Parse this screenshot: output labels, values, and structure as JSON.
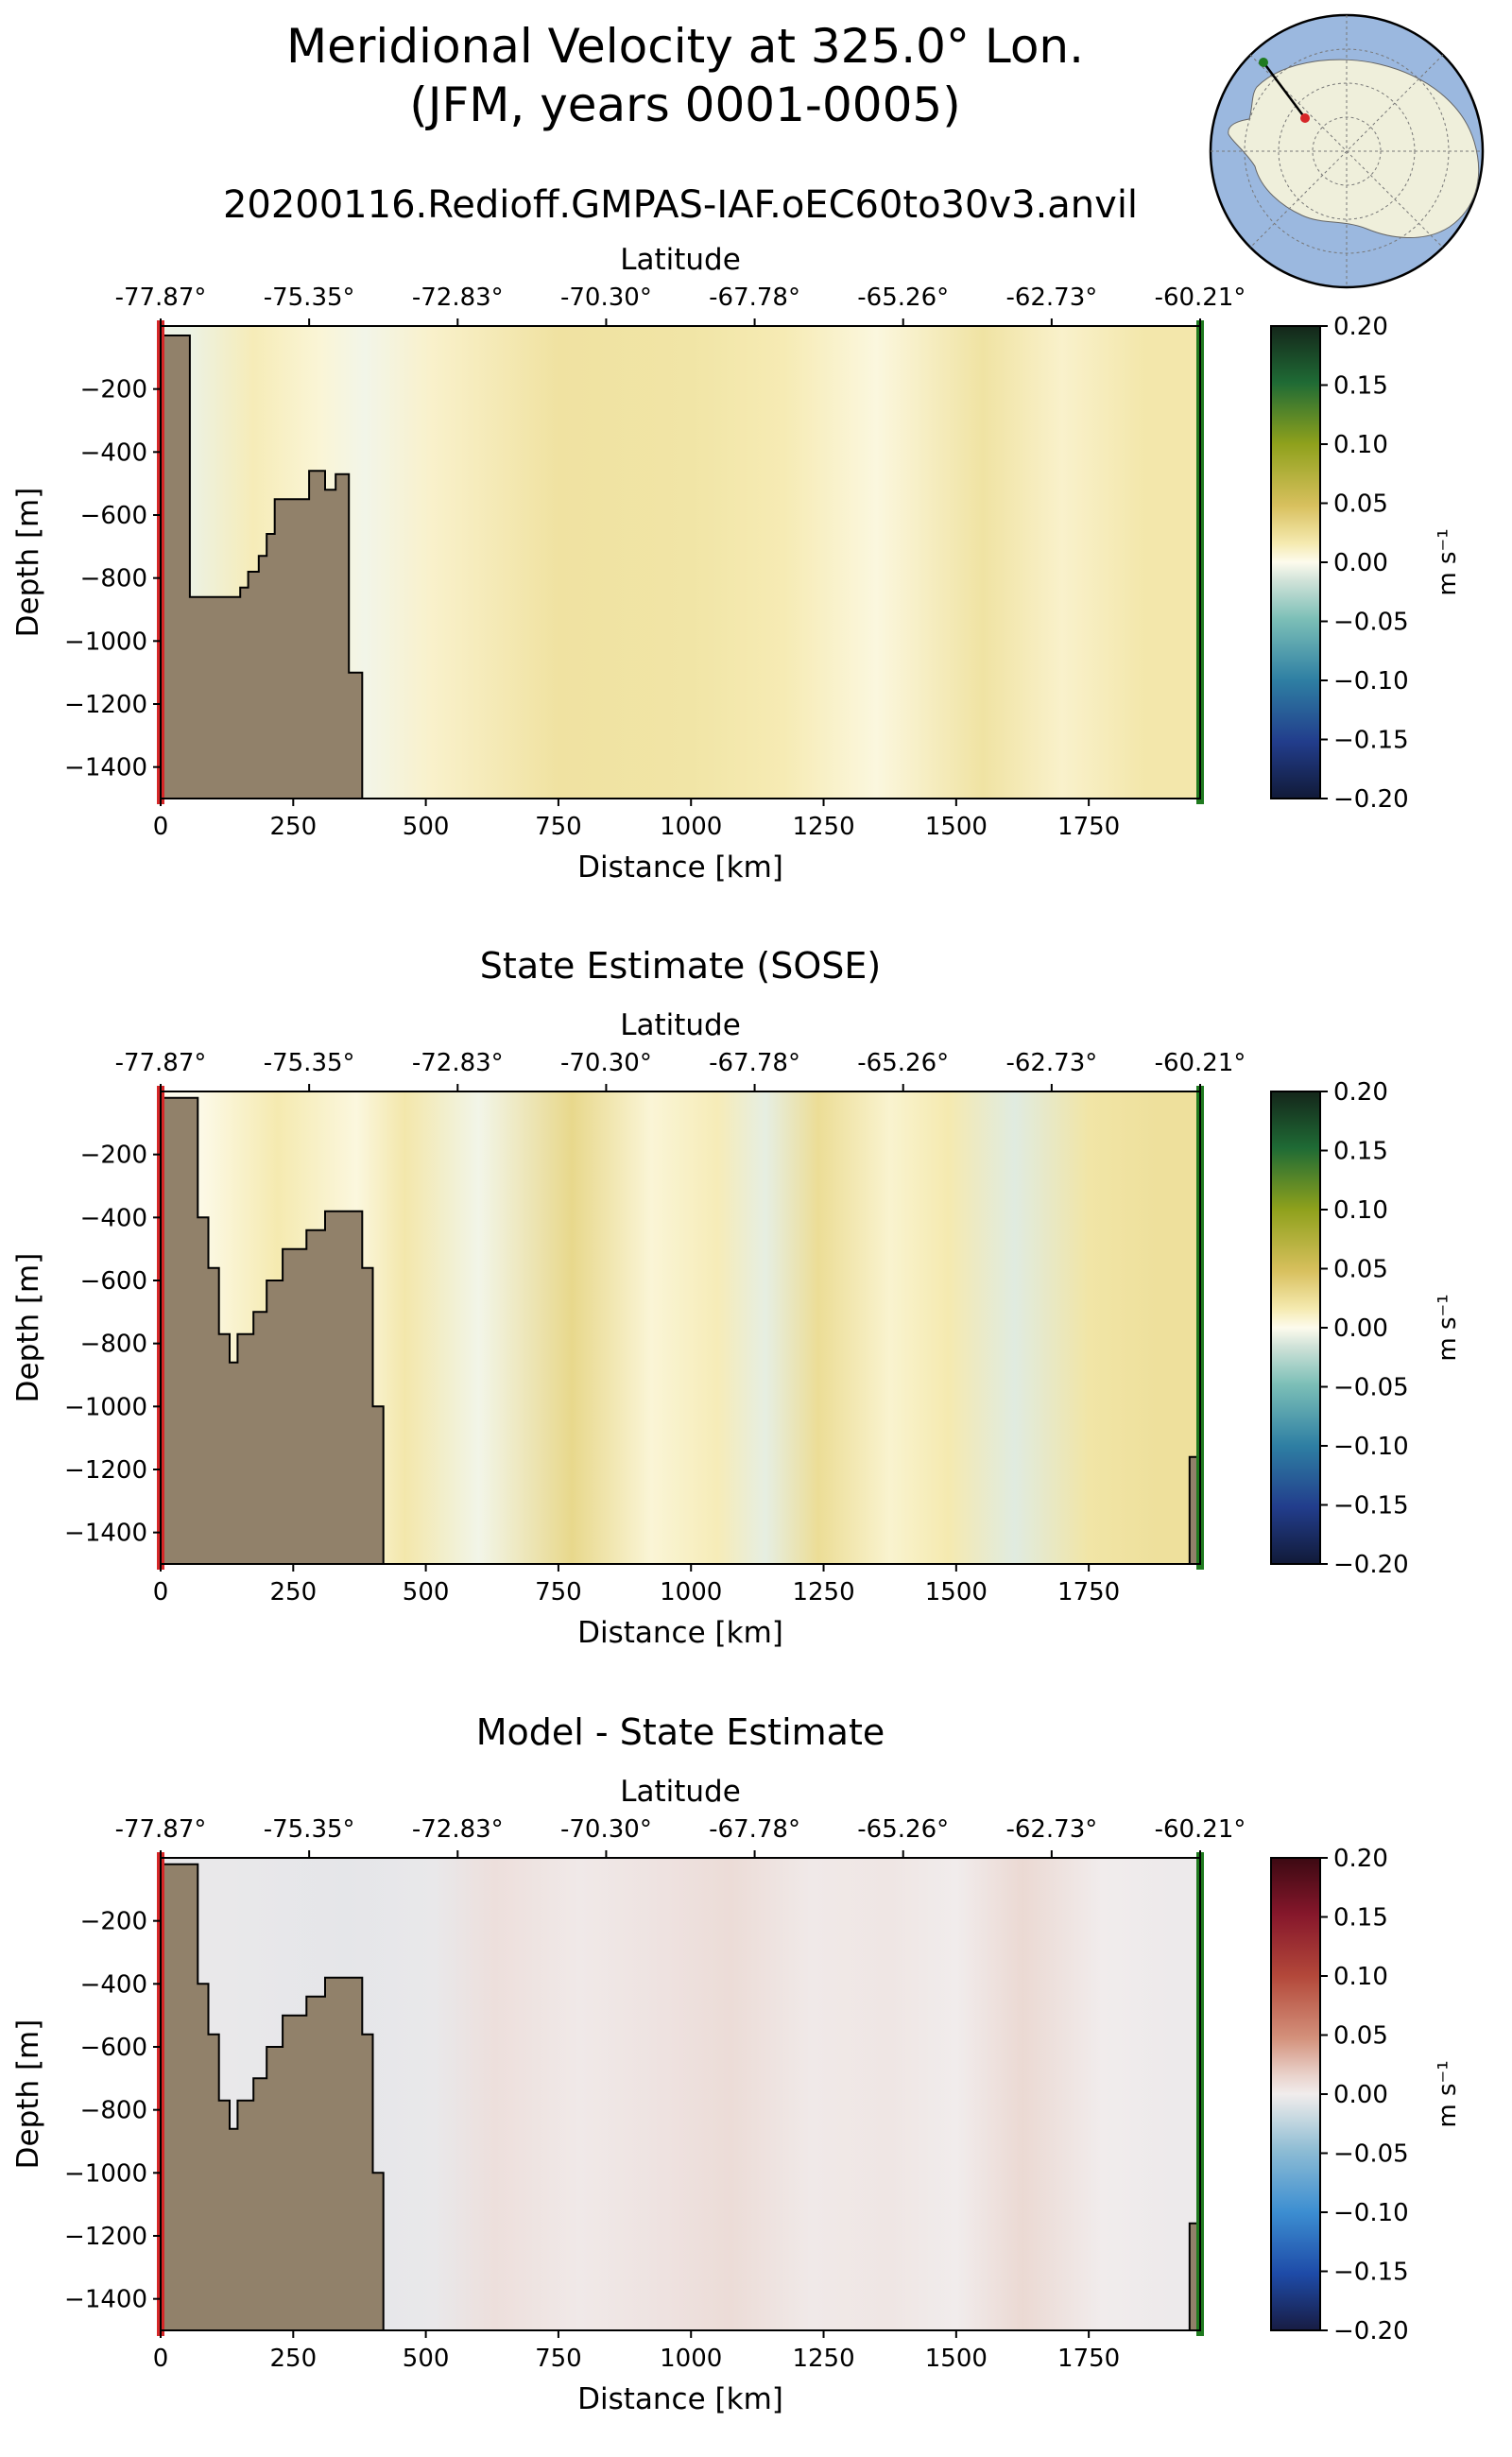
{
  "figure": {
    "title_line1": "Meridional Velocity at 325.0° Lon.",
    "title_line2": "(JFM, years 0001-0005)",
    "inset_map": {
      "type": "south-polar-stereographic",
      "land_color": "#efefdb",
      "ocean_color": "#9bb8df",
      "start_marker_color": "#d62728",
      "end_marker_color": "#1f7a1f"
    }
  },
  "chart_data": [
    {
      "type": "heatmap",
      "panel": "model",
      "title": "20200116.Redioff.GMPAS-IAF.oEC60to30v3.anvil",
      "xlabel": "Distance [km]",
      "ylabel": "Depth [m]",
      "top_xlabel": "Latitude",
      "xlim": [
        0,
        1960
      ],
      "ylim": [
        -1500,
        0
      ],
      "x_ticks": [
        0,
        250,
        500,
        750,
        1000,
        1250,
        1500,
        1750
      ],
      "x_tick_labels": [
        "0",
        "250",
        "500",
        "750",
        "1000",
        "1250",
        "1500",
        "1750"
      ],
      "y_ticks": [
        -200,
        -400,
        -600,
        -800,
        -1000,
        -1200,
        -1400
      ],
      "y_tick_labels": [
        "−200",
        "−400",
        "−600",
        "−800",
        "−1000",
        "−1200",
        "−1400"
      ],
      "top_ticks": [
        0,
        280,
        560,
        840,
        1120,
        1400,
        1680,
        1960
      ],
      "top_tick_labels": [
        "-77.87°",
        "-75.35°",
        "-72.83°",
        "-70.30°",
        "-67.78°",
        "-65.26°",
        "-62.73°",
        "-60.21°"
      ],
      "colorbar": {
        "label": "m s⁻¹",
        "range": [
          -0.2,
          0.2
        ],
        "colormap": "delta",
        "ticks": [
          0.2,
          0.15,
          0.1,
          0.05,
          0.0,
          -0.05,
          -0.1,
          -0.15,
          -0.2
        ],
        "tick_labels": [
          "0.20",
          "0.15",
          "0.10",
          "0.05",
          "0.00",
          "−0.05",
          "−0.10",
          "−0.15",
          "−0.20"
        ]
      },
      "field_columns": [
        {
          "x0": 0,
          "x1": 100,
          "value": -0.006
        },
        {
          "x0": 100,
          "x1": 250,
          "value": 0.014
        },
        {
          "x0": 250,
          "x1": 350,
          "value": 0.006
        },
        {
          "x0": 350,
          "x1": 420,
          "value": -0.004
        },
        {
          "x0": 420,
          "x1": 600,
          "value": 0.009
        },
        {
          "x0": 600,
          "x1": 900,
          "value": 0.022
        },
        {
          "x0": 900,
          "x1": 1100,
          "value": 0.02
        },
        {
          "x0": 1100,
          "x1": 1250,
          "value": 0.015
        },
        {
          "x0": 1250,
          "x1": 1450,
          "value": 0.004
        },
        {
          "x0": 1450,
          "x1": 1650,
          "value": 0.021
        },
        {
          "x0": 1650,
          "x1": 1750,
          "value": 0.009
        },
        {
          "x0": 1750,
          "x1": 1960,
          "value": 0.018
        }
      ],
      "bathymetry": [
        [
          0,
          -30
        ],
        [
          55,
          -30
        ],
        [
          55,
          -860
        ],
        [
          150,
          -860
        ],
        [
          150,
          -830
        ],
        [
          165,
          -830
        ],
        [
          165,
          -780
        ],
        [
          185,
          -780
        ],
        [
          185,
          -730
        ],
        [
          200,
          -730
        ],
        [
          200,
          -660
        ],
        [
          215,
          -660
        ],
        [
          215,
          -550
        ],
        [
          280,
          -550
        ],
        [
          280,
          -460
        ],
        [
          310,
          -460
        ],
        [
          310,
          -520
        ],
        [
          330,
          -520
        ],
        [
          330,
          -470
        ],
        [
          355,
          -470
        ],
        [
          355,
          -1100
        ],
        [
          380,
          -1100
        ],
        [
          380,
          -1500
        ],
        [
          0,
          -1500
        ]
      ],
      "bathymetry_end": [],
      "land_color": "#91816a",
      "start_line_color": "#d62728",
      "end_line_color": "#1f7a1f"
    },
    {
      "type": "heatmap",
      "panel": "reference",
      "title": "State Estimate (SOSE)",
      "xlabel": "Distance [km]",
      "ylabel": "Depth [m]",
      "top_xlabel": "Latitude",
      "xlim": [
        0,
        1960
      ],
      "ylim": [
        -1500,
        0
      ],
      "x_ticks": [
        0,
        250,
        500,
        750,
        1000,
        1250,
        1500,
        1750
      ],
      "x_tick_labels": [
        "0",
        "250",
        "500",
        "750",
        "1000",
        "1250",
        "1500",
        "1750"
      ],
      "y_ticks": [
        -200,
        -400,
        -600,
        -800,
        -1000,
        -1200,
        -1400
      ],
      "y_tick_labels": [
        "−200",
        "−400",
        "−600",
        "−800",
        "−1000",
        "−1200",
        "−1400"
      ],
      "top_ticks": [
        0,
        280,
        560,
        840,
        1120,
        1400,
        1680,
        1960
      ],
      "top_tick_labels": [
        "-77.87°",
        "-75.35°",
        "-72.83°",
        "-70.30°",
        "-67.78°",
        "-65.26°",
        "-62.73°",
        "-60.21°"
      ],
      "colorbar": {
        "label": "m s⁻¹",
        "range": [
          -0.2,
          0.2
        ],
        "colormap": "delta",
        "ticks": [
          0.2,
          0.15,
          0.1,
          0.05,
          0.0,
          -0.05,
          -0.1,
          -0.15,
          -0.2
        ],
        "tick_labels": [
          "0.20",
          "0.15",
          "0.10",
          "0.05",
          "0.00",
          "−0.05",
          "−0.10",
          "−0.15",
          "−0.20"
        ]
      },
      "field_columns": [
        {
          "x0": 0,
          "x1": 120,
          "value": 0.0
        },
        {
          "x0": 120,
          "x1": 320,
          "value": 0.016
        },
        {
          "x0": 320,
          "x1": 420,
          "value": 0.004
        },
        {
          "x0": 420,
          "x1": 500,
          "value": 0.018
        },
        {
          "x0": 500,
          "x1": 700,
          "value": -0.004
        },
        {
          "x0": 700,
          "x1": 850,
          "value": 0.03
        },
        {
          "x0": 850,
          "x1": 1000,
          "value": 0.006
        },
        {
          "x0": 1000,
          "x1": 1100,
          "value": 0.014
        },
        {
          "x0": 1100,
          "x1": 1180,
          "value": -0.008
        },
        {
          "x0": 1180,
          "x1": 1300,
          "value": 0.026
        },
        {
          "x0": 1300,
          "x1": 1450,
          "value": 0.008
        },
        {
          "x0": 1450,
          "x1": 1520,
          "value": 0.016
        },
        {
          "x0": 1520,
          "x1": 1700,
          "value": -0.01
        },
        {
          "x0": 1700,
          "x1": 1800,
          "value": 0.02
        },
        {
          "x0": 1800,
          "x1": 1960,
          "value": 0.024
        }
      ],
      "bathymetry": [
        [
          0,
          -20
        ],
        [
          70,
          -20
        ],
        [
          70,
          -400
        ],
        [
          90,
          -400
        ],
        [
          90,
          -560
        ],
        [
          110,
          -560
        ],
        [
          110,
          -770
        ],
        [
          130,
          -770
        ],
        [
          130,
          -860
        ],
        [
          145,
          -860
        ],
        [
          145,
          -770
        ],
        [
          175,
          -770
        ],
        [
          175,
          -700
        ],
        [
          200,
          -700
        ],
        [
          200,
          -600
        ],
        [
          230,
          -600
        ],
        [
          230,
          -500
        ],
        [
          275,
          -500
        ],
        [
          275,
          -440
        ],
        [
          310,
          -440
        ],
        [
          310,
          -380
        ],
        [
          380,
          -380
        ],
        [
          380,
          -560
        ],
        [
          400,
          -560
        ],
        [
          400,
          -1000
        ],
        [
          420,
          -1000
        ],
        [
          420,
          -1500
        ],
        [
          0,
          -1500
        ]
      ],
      "bathymetry_end": [
        [
          1960,
          -1160
        ],
        [
          1940,
          -1160
        ],
        [
          1940,
          -1500
        ],
        [
          1960,
          -1500
        ]
      ],
      "land_color": "#91816a",
      "start_line_color": "#d62728",
      "end_line_color": "#1f7a1f"
    },
    {
      "type": "heatmap",
      "panel": "difference",
      "title": "Model - State Estimate",
      "xlabel": "Distance [km]",
      "ylabel": "Depth [m]",
      "top_xlabel": "Latitude",
      "xlim": [
        0,
        1960
      ],
      "ylim": [
        -1500,
        0
      ],
      "x_ticks": [
        0,
        250,
        500,
        750,
        1000,
        1250,
        1500,
        1750
      ],
      "x_tick_labels": [
        "0",
        "250",
        "500",
        "750",
        "1000",
        "1250",
        "1500",
        "1750"
      ],
      "y_ticks": [
        -200,
        -400,
        -600,
        -800,
        -1000,
        -1200,
        -1400
      ],
      "y_tick_labels": [
        "−200",
        "−400",
        "−600",
        "−800",
        "−1000",
        "−1200",
        "−1400"
      ],
      "top_ticks": [
        0,
        280,
        560,
        840,
        1120,
        1400,
        1680,
        1960
      ],
      "top_tick_labels": [
        "-77.87°",
        "-75.35°",
        "-72.83°",
        "-70.30°",
        "-67.78°",
        "-65.26°",
        "-62.73°",
        "-60.21°"
      ],
      "colorbar": {
        "label": "m s⁻¹",
        "range": [
          -0.2,
          0.2
        ],
        "colormap": "balance",
        "ticks": [
          0.2,
          0.15,
          0.1,
          0.05,
          0.0,
          -0.05,
          -0.1,
          -0.15,
          -0.2
        ],
        "tick_labels": [
          "0.20",
          "0.15",
          "0.10",
          "0.05",
          "0.00",
          "−0.05",
          "−0.10",
          "−0.15",
          "−0.20"
        ]
      },
      "field_columns": [
        {
          "x0": 0,
          "x1": 250,
          "value": -0.004
        },
        {
          "x0": 250,
          "x1": 450,
          "value": -0.006
        },
        {
          "x0": 450,
          "x1": 580,
          "value": -0.004
        },
        {
          "x0": 580,
          "x1": 680,
          "value": 0.008
        },
        {
          "x0": 680,
          "x1": 900,
          "value": 0.002
        },
        {
          "x0": 900,
          "x1": 1000,
          "value": 0.006
        },
        {
          "x0": 1000,
          "x1": 1150,
          "value": 0.01
        },
        {
          "x0": 1150,
          "x1": 1300,
          "value": 0.002
        },
        {
          "x0": 1300,
          "x1": 1450,
          "value": 0.004
        },
        {
          "x0": 1450,
          "x1": 1550,
          "value": 0.0
        },
        {
          "x0": 1550,
          "x1": 1700,
          "value": 0.012
        },
        {
          "x0": 1700,
          "x1": 1850,
          "value": 0.0
        },
        {
          "x0": 1850,
          "x1": 1960,
          "value": -0.002
        }
      ],
      "bathymetry": [
        [
          0,
          -20
        ],
        [
          70,
          -20
        ],
        [
          70,
          -400
        ],
        [
          90,
          -400
        ],
        [
          90,
          -560
        ],
        [
          110,
          -560
        ],
        [
          110,
          -770
        ],
        [
          130,
          -770
        ],
        [
          130,
          -860
        ],
        [
          145,
          -860
        ],
        [
          145,
          -770
        ],
        [
          175,
          -770
        ],
        [
          175,
          -700
        ],
        [
          200,
          -700
        ],
        [
          200,
          -600
        ],
        [
          230,
          -600
        ],
        [
          230,
          -500
        ],
        [
          275,
          -500
        ],
        [
          275,
          -440
        ],
        [
          310,
          -440
        ],
        [
          310,
          -380
        ],
        [
          380,
          -380
        ],
        [
          380,
          -560
        ],
        [
          400,
          -560
        ],
        [
          400,
          -1000
        ],
        [
          420,
          -1000
        ],
        [
          420,
          -1500
        ],
        [
          0,
          -1500
        ]
      ],
      "bathymetry_end": [
        [
          1960,
          -1160
        ],
        [
          1940,
          -1160
        ],
        [
          1940,
          -1500
        ],
        [
          1960,
          -1500
        ]
      ],
      "land_color": "#91816a",
      "start_line_color": "#d62728",
      "end_line_color": "#1f7a1f"
    }
  ]
}
